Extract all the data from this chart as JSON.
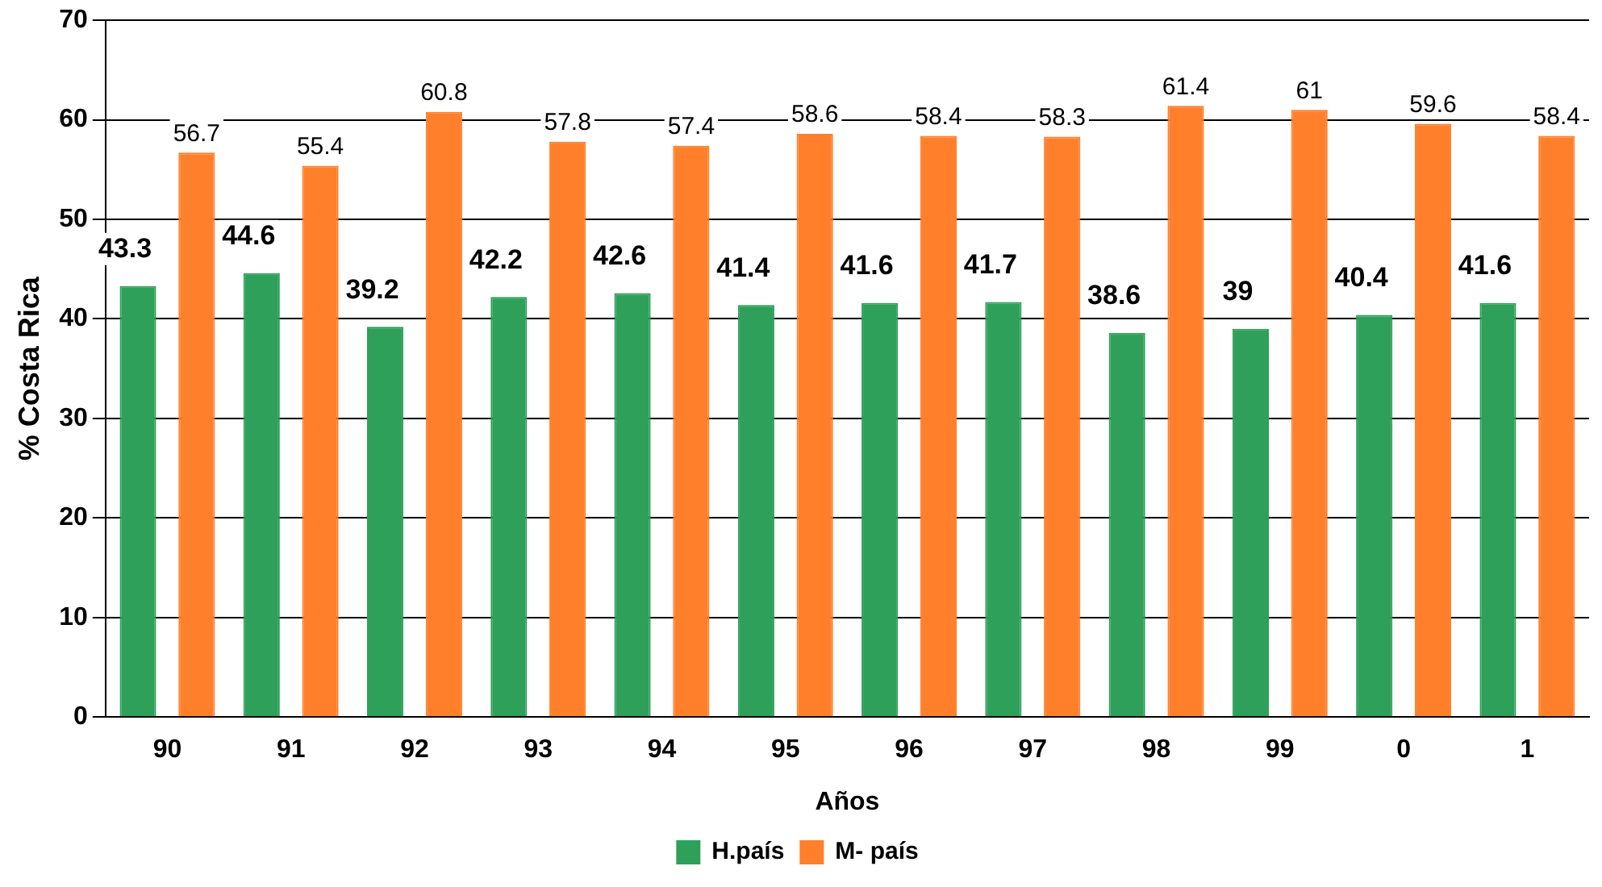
{
  "chart_data": {
    "type": "bar",
    "xlabel": "Años",
    "ylabel": "% Costa Rica",
    "categories": [
      "90",
      "91",
      "92",
      "93",
      "94",
      "95",
      "96",
      "97",
      "98",
      "99",
      "0",
      "1"
    ],
    "series": [
      {
        "name": "H.país",
        "color": "#2ea05a",
        "values": [
          43.3,
          44.6,
          39.2,
          42.2,
          42.6,
          41.4,
          41.6,
          41.7,
          38.6,
          39,
          40.4,
          41.6
        ]
      },
      {
        "name": "M- país",
        "color": "#ff7f2a",
        "values": [
          56.7,
          55.4,
          60.8,
          57.8,
          57.4,
          58.6,
          58.4,
          58.3,
          61.4,
          61,
          59.6,
          58.4
        ]
      }
    ],
    "ylim": [
      0,
      70
    ],
    "yticks": [
      0,
      10,
      20,
      30,
      40,
      50,
      60,
      70
    ],
    "grid": "y",
    "legend": "bottom",
    "data_labels": true
  }
}
